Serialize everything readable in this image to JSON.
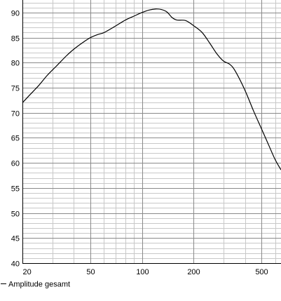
{
  "chart_data": {
    "type": "line",
    "title": "",
    "xlabel": "",
    "ylabel": "",
    "x_scale": "log",
    "xlim": [
      20,
      650
    ],
    "ylim": [
      40,
      92.5
    ],
    "grid": true,
    "x_ticks": [
      20,
      50,
      100,
      200,
      500
    ],
    "x_tick_labels": [
      "20",
      "50",
      "100",
      "200",
      "500"
    ],
    "y_ticks": [
      40,
      45,
      50,
      55,
      60,
      65,
      70,
      75,
      80,
      85,
      90
    ],
    "y_tick_labels": [
      "40",
      "45",
      "50",
      "55",
      "60",
      "65",
      "70",
      "75",
      "80",
      "85",
      "90"
    ],
    "legend": {
      "position": "bottom-left",
      "entries": [
        "Amplitude gesamt"
      ]
    },
    "series": [
      {
        "name": "Amplitude gesamt",
        "color": "#000000",
        "x": [
          20,
          22,
          25,
          28,
          32,
          36,
          40,
          45,
          50,
          55,
          60,
          70,
          80,
          90,
          100,
          110,
          120,
          130,
          140,
          150,
          160,
          180,
          200,
          225,
          250,
          275,
          300,
          325,
          350,
          400,
          450,
          500,
          550,
          600,
          650
        ],
        "y": [
          72,
          73.5,
          75.5,
          77.5,
          79.5,
          81.3,
          82.7,
          84,
          85,
          85.6,
          86,
          87.3,
          88.5,
          89.3,
          90,
          90.5,
          90.7,
          90.6,
          90.1,
          89,
          88.5,
          88.4,
          87.4,
          86,
          83.8,
          81.7,
          80.3,
          79.7,
          78.4,
          74.5,
          70.3,
          66.8,
          63.6,
          60.7,
          58.6
        ]
      }
    ]
  }
}
